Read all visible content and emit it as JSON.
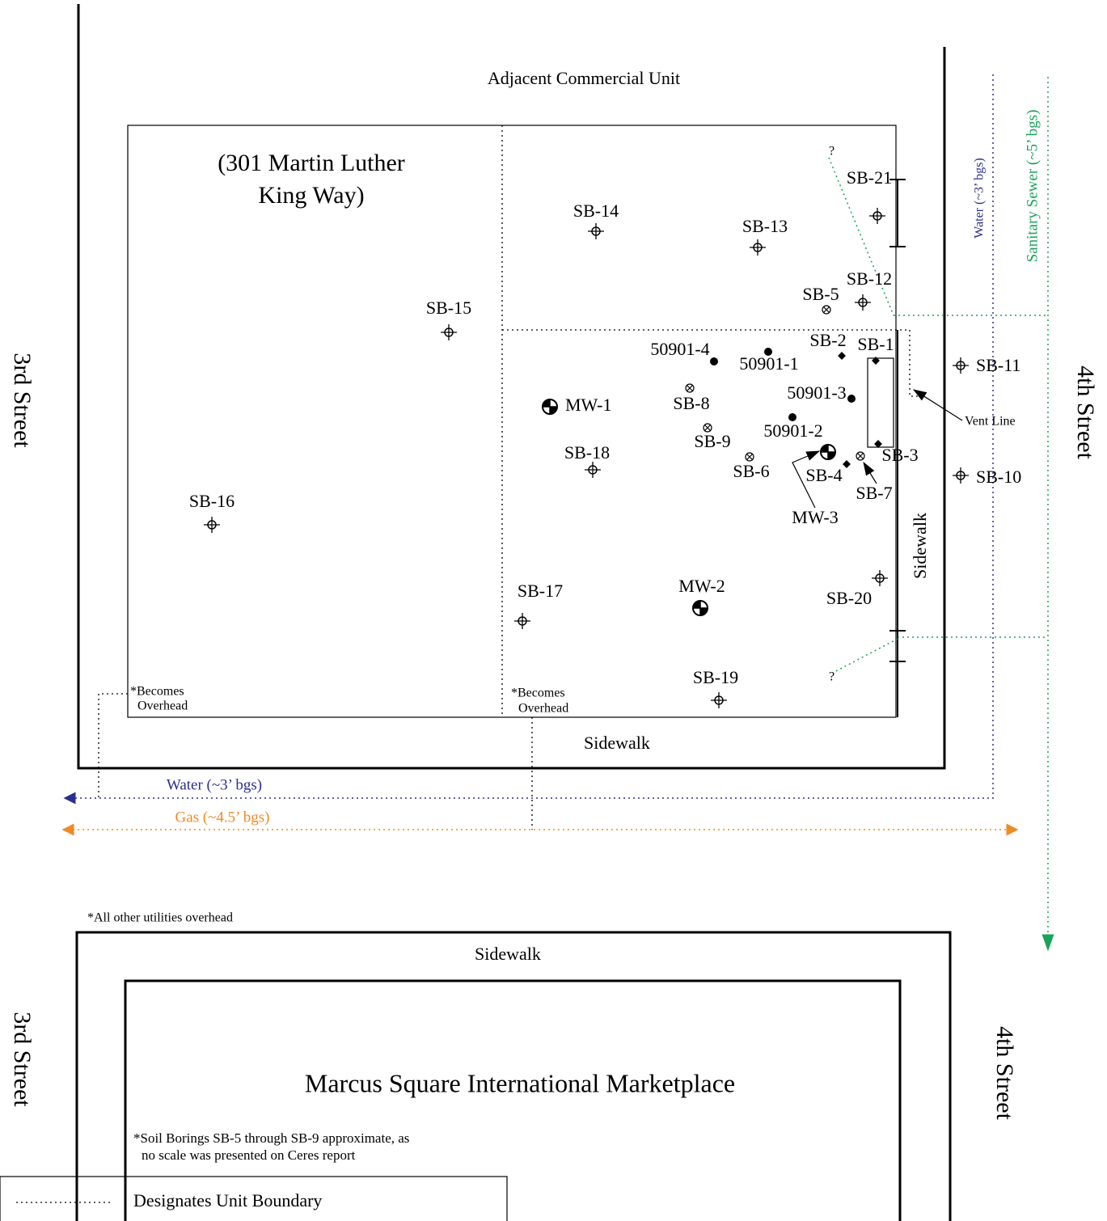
{
  "adjacent": "Adjacent Commercial Unit",
  "address": [
    "(301 Martin Luther",
    "King Way)"
  ],
  "streets": {
    "west_upper": "3rd Street",
    "east_upper": "4th Street",
    "west_lower": "3rd Street",
    "east_lower": "4th Street"
  },
  "utilities": {
    "water_vertical": "Water (~3’ bgs)",
    "sewer": "Sanitary Sewer (~5’ bgs)",
    "water_horizontal": "Water (~3’ bgs)",
    "gas": "Gas (~4.5’ bgs)"
  },
  "sidewalks": {
    "east": "Sidewalk",
    "south": "Sidewalk",
    "lower": "Sidewalk"
  },
  "vent_line": "Vent Line",
  "unknown": [
    "?",
    "?"
  ],
  "overhead": [
    [
      "*Becomes",
      "Overhead"
    ],
    [
      "*Becomes",
      "Overhead"
    ]
  ],
  "all_overhead": "*All other utilities overhead",
  "marketplace": "Marcus Square International Marketplace",
  "boring_note": [
    "*Soil Borings SB-5 through SB-9 approximate, as",
    "no scale was presented on Ceres report"
  ],
  "legend": [
    "Designates Unit Boundary"
  ],
  "points": [
    "SB-21",
    "SB-14",
    "SB-13",
    "SB-12",
    "SB-5",
    "SB-15",
    "SB-2",
    "SB-1",
    "50901-4",
    "50901-1",
    "SB-11",
    "50901-3",
    "SB-8",
    "MW-1",
    "SB-9",
    "50901-2",
    "SB-18",
    "SB-3",
    "SB-6",
    "SB-4",
    "SB-7",
    "MW-3",
    "SB-10",
    "SB-16",
    "SB-17",
    "MW-2",
    "SB-20",
    "SB-19"
  ]
}
